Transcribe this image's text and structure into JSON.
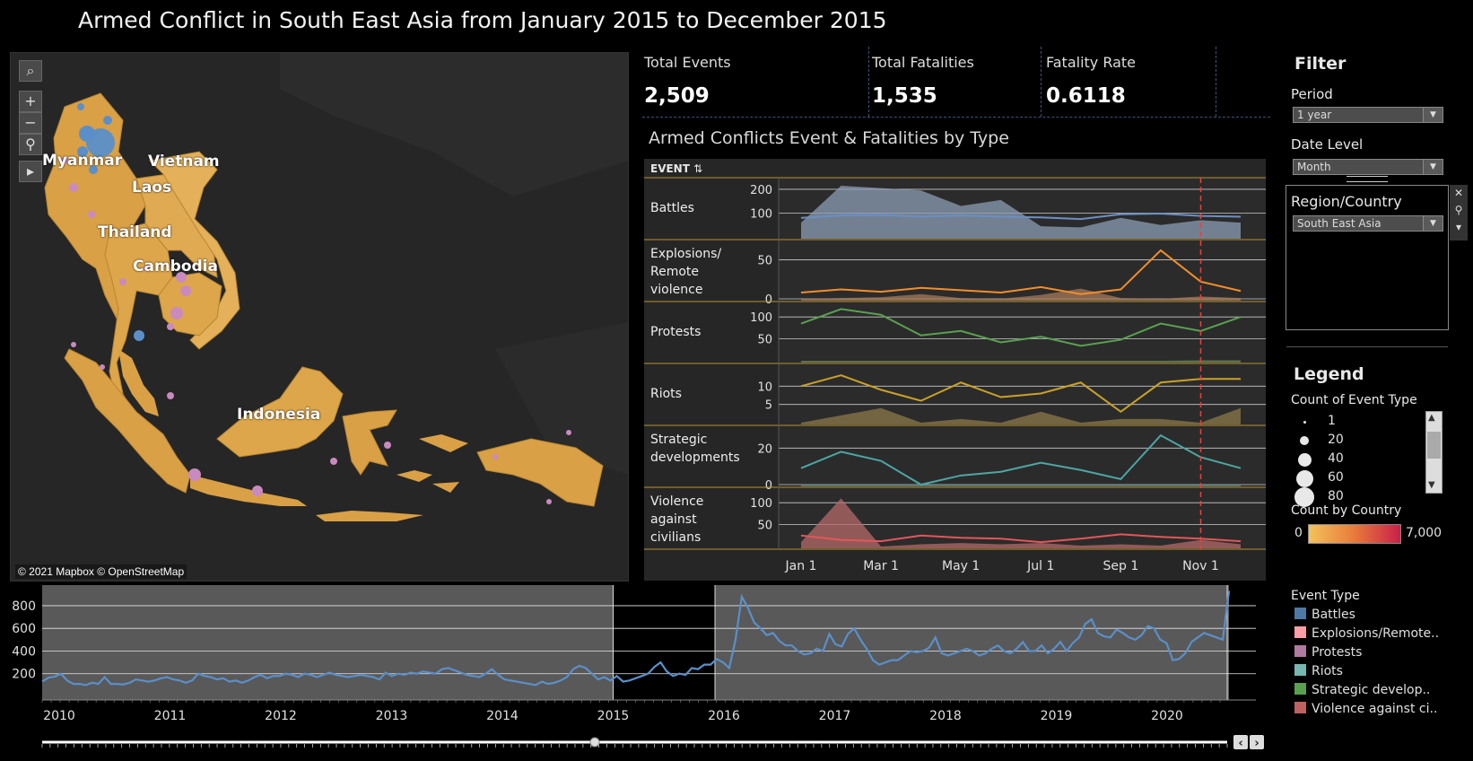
{
  "title": "Armed Conflict in South East Asia from January 2015 to December 2015",
  "map": {
    "attribution": "© 2021 Mapbox © OpenStreetMap",
    "labels": {
      "myanmar": "Myanmar",
      "vietnam": "Vietnam",
      "laos": "Laos",
      "thailand": "Thailand",
      "cambodia": "Cambodia",
      "indonesia": "Indonesia"
    },
    "controls": {
      "search": "⌕",
      "zoom_in": "+",
      "zoom_out": "−",
      "pin": "⚲",
      "expand": "▸"
    }
  },
  "kpis": [
    {
      "label": "Total Events",
      "value": "2,509"
    },
    {
      "label": "Total Fatalities",
      "value": "1,535"
    },
    {
      "label": "Fatality Rate",
      "value": "0.6118"
    }
  ],
  "filter": {
    "heading": "Filter",
    "period_label": "Period",
    "period_value": "1 year",
    "date_level_label": "Date Level",
    "date_level_value": "Month",
    "region_label": "Region/Country",
    "region_value": "South East Asia"
  },
  "legend": {
    "heading": "Legend",
    "count_event_type_title": "Count of Event Type",
    "sizes": [
      "1",
      "20",
      "40",
      "60",
      "80"
    ],
    "count_by_country_title": "Count by Country",
    "country_min": "0",
    "country_max": "7,000",
    "event_type_title": "Event Type",
    "event_types": [
      {
        "label": "Battles",
        "color": "#4e79a7"
      },
      {
        "label": "Explosions/Remote..",
        "color": "#ff9da7"
      },
      {
        "label": "Protests",
        "color": "#b07aa1"
      },
      {
        "label": "Riots",
        "color": "#76b7b2"
      },
      {
        "label": "Strategic develop..",
        "color": "#59a14f"
      },
      {
        "label": "Violence against ci..",
        "color": "#c06060"
      }
    ]
  },
  "chart_title": "Armed Conflicts Event & Fatalities by Type",
  "chart_data": [
    {
      "type": "line",
      "title": "Armed Conflicts Event & Fatalities by Type",
      "row_header": "EVENT",
      "x_ticks": [
        "Jan 1",
        "Mar 1",
        "May 1",
        "Jul 1",
        "Sep 1",
        "Nov 1"
      ],
      "x": [
        "2015-01",
        "2015-02",
        "2015-03",
        "2015-04",
        "2015-05",
        "2015-06",
        "2015-07",
        "2015-08",
        "2015-09",
        "2015-10",
        "2015-11",
        "2015-12"
      ],
      "reference_line": "2015-11",
      "rows": [
        {
          "label": "Battles",
          "color": "#6c8fc4",
          "area_color": "#8c9db4",
          "ticks": [
            "100",
            "200"
          ],
          "ylim": [
            0,
            230
          ],
          "events": [
            80,
            90,
            92,
            85,
            90,
            85,
            82,
            75,
            95,
            98,
            88,
            85
          ],
          "fatalities": [
            60,
            215,
            205,
            195,
            130,
            155,
            45,
            40,
            80,
            50,
            70,
            60
          ]
        },
        {
          "label": "Explosions/ Remote violence",
          "color": "#f28e2b",
          "area_color": "#a67a5a",
          "ticks": [
            "0",
            "50"
          ],
          "ylim": [
            0,
            70
          ],
          "events": [
            8,
            12,
            9,
            14,
            11,
            8,
            15,
            6,
            12,
            62,
            22,
            10
          ],
          "fatalities": [
            0,
            1,
            2,
            6,
            1,
            0,
            5,
            13,
            1,
            0,
            3,
            1
          ]
        },
        {
          "label": "Protests",
          "color": "#59a14f",
          "area_color": "#6e8a57",
          "ticks": [
            "50",
            "100"
          ],
          "ylim": [
            0,
            125
          ],
          "events": [
            85,
            118,
            105,
            58,
            68,
            42,
            55,
            34,
            48,
            85,
            68,
            100
          ],
          "fatalities": [
            0,
            0,
            0,
            0,
            0,
            0,
            0,
            0,
            0,
            0,
            1,
            1
          ]
        },
        {
          "label": "Riots",
          "color": "#c9a227",
          "area_color": "#8c7a4a",
          "ticks": [
            "5",
            "10"
          ],
          "ylim": [
            0,
            15
          ],
          "events": [
            10,
            13,
            9,
            6,
            11,
            7,
            8,
            11,
            3,
            11,
            12,
            12
          ],
          "fatalities": [
            0,
            2,
            4,
            0,
            1,
            0,
            3,
            0,
            1,
            1,
            0,
            4
          ]
        },
        {
          "label": "Strategic developments",
          "color": "#4da6a3",
          "area_color": "#5f8a8a",
          "ticks": [
            "0",
            "20"
          ],
          "ylim": [
            0,
            30
          ],
          "events": [
            9,
            18,
            13,
            0,
            5,
            7,
            12,
            8,
            3,
            27,
            15,
            9
          ],
          "fatalities": [
            0,
            0,
            0,
            0,
            0,
            0,
            0,
            0,
            0,
            0,
            0,
            0
          ]
        },
        {
          "label": "Violence against civilians",
          "color": "#e15759",
          "area_color": "#b56a6a",
          "ticks": [
            "50",
            "100"
          ],
          "ylim": [
            0,
            125
          ],
          "events": [
            25,
            15,
            12,
            25,
            20,
            18,
            10,
            18,
            28,
            22,
            18,
            12
          ],
          "fatalities": [
            10,
            110,
            0,
            5,
            8,
            5,
            8,
            2,
            5,
            2,
            15,
            5
          ]
        }
      ]
    },
    {
      "type": "line",
      "title": "",
      "x_ticks": [
        "2010",
        "2011",
        "2012",
        "2013",
        "2014",
        "2015",
        "2016",
        "2017",
        "2018",
        "2019",
        "2020"
      ],
      "y_ticks": [
        "200",
        "400",
        "600",
        "800"
      ],
      "ylim": [
        0,
        950
      ],
      "series": [
        {
          "color": "#5b8fc9",
          "values": [
            130,
            165,
            175,
            200,
            140,
            110,
            110,
            100,
            120,
            110,
            170,
            110,
            110,
            105,
            120,
            150,
            140,
            130,
            140,
            160,
            170,
            150,
            140,
            120,
            140,
            200,
            180,
            170,
            150,
            160,
            130,
            140,
            120,
            140,
            170,
            190,
            160,
            180,
            180,
            200,
            190,
            170,
            200,
            190,
            170,
            190,
            210,
            190,
            180,
            170,
            180,
            190,
            180,
            170,
            150,
            210,
            180,
            200,
            190,
            210,
            200,
            220,
            210,
            200,
            240,
            250,
            230,
            210,
            190,
            180,
            170,
            200,
            240,
            190,
            150,
            140,
            130,
            120,
            110,
            100,
            130,
            110,
            120,
            140,
            170,
            240,
            270,
            250,
            200,
            150,
            170,
            140,
            180,
            130,
            140,
            160,
            180,
            200,
            260,
            300,
            220,
            180,
            200,
            190,
            250,
            240,
            280,
            280,
            330,
            300,
            250,
            500,
            880,
            780,
            650,
            600,
            540,
            560,
            490,
            450,
            450,
            400,
            370,
            380,
            420,
            400,
            550,
            460,
            440,
            550,
            600,
            500,
            420,
            320,
            280,
            300,
            320,
            320,
            360,
            400,
            390,
            400,
            430,
            520,
            380,
            360,
            380,
            400,
            420,
            400,
            360,
            380,
            420,
            450,
            400,
            380,
            420,
            480,
            400,
            400,
            450,
            380,
            420,
            480,
            400,
            470,
            520,
            640,
            680,
            560,
            530,
            520,
            590,
            560,
            520,
            500,
            540,
            620,
            600,
            500,
            470,
            320,
            330,
            380,
            480,
            520,
            560,
            540,
            520,
            500,
            930
          ]
        }
      ],
      "selection": [
        "2015",
        "2016"
      ]
    }
  ]
}
